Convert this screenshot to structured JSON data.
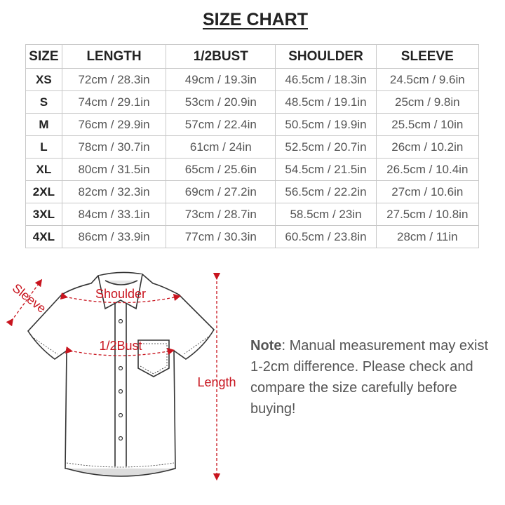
{
  "title": "SIZE CHART",
  "table": {
    "headers": [
      "SIZE",
      "LENGTH",
      "1/2BUST",
      "SHOULDER",
      "SLEEVE"
    ],
    "rows": [
      [
        "XS",
        "72cm / 28.3in",
        "49cm / 19.3in",
        "46.5cm / 18.3in",
        "24.5cm / 9.6in"
      ],
      [
        "S",
        "74cm / 29.1in",
        "53cm / 20.9in",
        "48.5cm / 19.1in",
        "25cm / 9.8in"
      ],
      [
        "M",
        "76cm / 29.9in",
        "57cm / 22.4in",
        "50.5cm / 19.9in",
        "25.5cm / 10in"
      ],
      [
        "L",
        "78cm / 30.7in",
        "61cm / 24in",
        "52.5cm / 20.7in",
        "26cm / 10.2in"
      ],
      [
        "XL",
        "80cm / 31.5in",
        "65cm / 25.6in",
        "54.5cm / 21.5in",
        "26.5cm / 10.4in"
      ],
      [
        "2XL",
        "82cm / 32.3in",
        "69cm / 27.2in",
        "56.5cm / 22.2in",
        "27cm / 10.6in"
      ],
      [
        "3XL",
        "84cm / 33.1in",
        "73cm / 28.7in",
        "58.5cm / 23in",
        "27.5cm / 10.8in"
      ],
      [
        "4XL",
        "86cm / 33.9in",
        "77cm / 30.3in",
        "60.5cm / 23.8in",
        "28cm / 11in"
      ]
    ]
  },
  "diagram": {
    "labels": {
      "shoulder": "Shoulder",
      "bust": "1/2Bust",
      "length": "Length",
      "sleeve": "Sleeve"
    },
    "accent": "#c8141e"
  },
  "note": {
    "label": "Note",
    "text": ": Manual measurement may exist 1-2cm difference. Please check and compare the size carefully before buying!"
  }
}
